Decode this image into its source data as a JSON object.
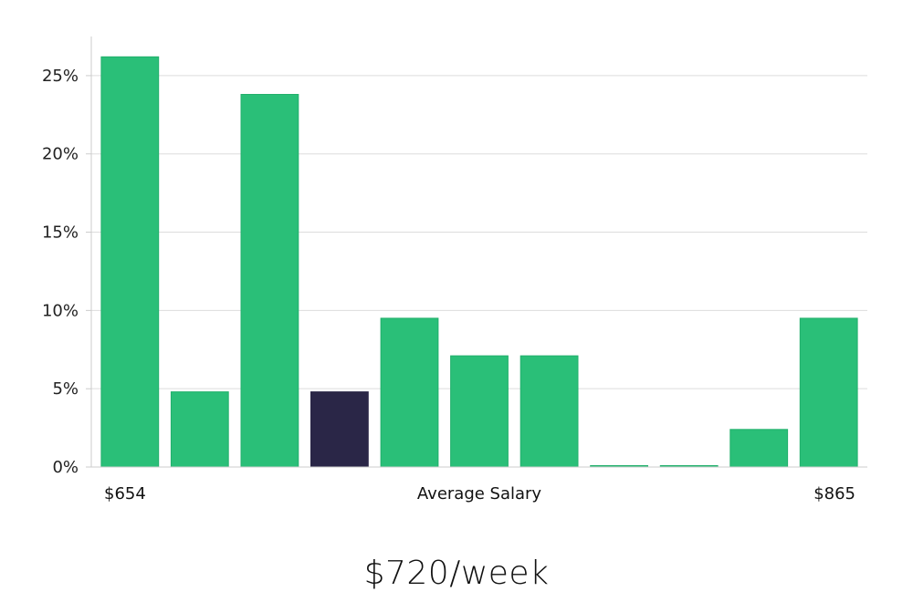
{
  "headline": "$720/week",
  "chart_data": {
    "type": "bar",
    "title": "",
    "xlabel": "Average Salary",
    "ylabel": "",
    "x_min_label": "$654",
    "x_max_label": "$865",
    "categories": [
      "",
      "",
      "",
      "",
      "",
      "",
      "",
      "",
      "",
      "",
      ""
    ],
    "values": [
      26.2,
      4.8,
      23.8,
      4.8,
      9.5,
      7.1,
      7.1,
      0,
      0,
      2.4,
      9.5
    ],
    "highlight_index": 3,
    "ylim": [
      0,
      27.5
    ],
    "yticks": [
      0,
      5,
      10,
      15,
      20,
      25
    ],
    "ytick_format": "percent",
    "grid": true,
    "legend": "none",
    "colors": {
      "bar": "#2abf78",
      "bar_edge": "#22b06c",
      "highlight": "#2a2647",
      "grid": "#dddddd",
      "axis": "#cccccc"
    }
  }
}
